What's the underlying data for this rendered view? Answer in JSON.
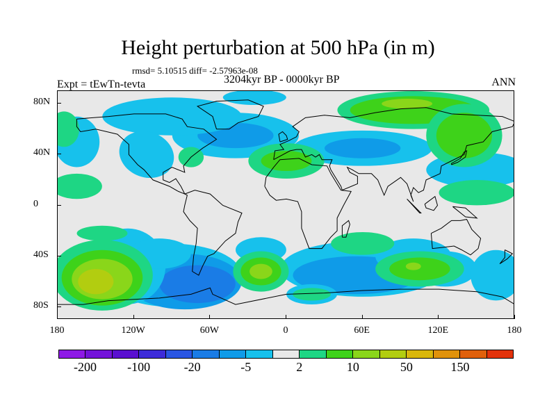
{
  "title": "Height perturbation at 500 hPa (in m)",
  "stats": "rmsd= 5.10515 diff= -2.57963e-08",
  "subtitle": "3204kyr BP - 0000kyr BP",
  "experiment": "Expt = tEwTn-tevta",
  "season": "ANN",
  "lat_labels": [
    "80N",
    "40N",
    "0",
    "40S",
    "80S"
  ],
  "lat_values": [
    80,
    40,
    0,
    -40,
    -80
  ],
  "lon_labels": [
    "180",
    "120W",
    "60W",
    "0",
    "60E",
    "120E",
    "180"
  ],
  "lon_values": [
    -180,
    -120,
    -60,
    0,
    60,
    120,
    180
  ],
  "map_extent": {
    "lon": [
      -180,
      180
    ],
    "lat": [
      -90,
      90
    ]
  },
  "colorbar": {
    "colors": [
      "#8e19e6",
      "#7313d9",
      "#5a0fd0",
      "#3d2bd9",
      "#2a56e3",
      "#1a7ce6",
      "#0f9be8",
      "#17c1ec",
      "#e8e8e8",
      "#1ed684",
      "#3ed21a",
      "#8ad61a",
      "#b2cd10",
      "#d9b70b",
      "#e0920b",
      "#e0600b",
      "#e3320b"
    ],
    "labels": [
      "-200",
      "-100",
      "-20",
      "-5",
      "2",
      "10",
      "50",
      "150"
    ]
  }
}
